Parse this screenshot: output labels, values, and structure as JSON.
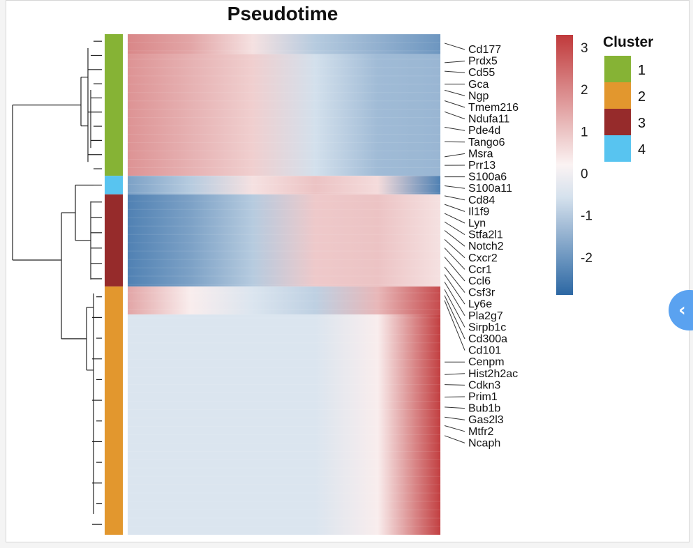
{
  "chart_data": {
    "type": "heatmap",
    "title": "Pseudotime",
    "color_scale": {
      "min": -2.9,
      "max": 3.3,
      "ticks": [
        3,
        2,
        1,
        0,
        -1,
        -2
      ],
      "colors": {
        "low": "#2c67a3",
        "mid": "#ffffff",
        "high": "#c0393b"
      }
    },
    "legend": {
      "title": "Cluster",
      "position": "right",
      "items": [
        {
          "label": "1",
          "color": "#86b335"
        },
        {
          "label": "2",
          "color": "#e2972e"
        },
        {
          "label": "3",
          "color": "#962b2b"
        },
        {
          "label": "4",
          "color": "#58c4f0"
        }
      ]
    },
    "row_clusters": [
      {
        "cluster": "1",
        "fraction": 0.283
      },
      {
        "cluster": "4",
        "fraction": 0.037
      },
      {
        "cluster": "3",
        "fraction": 0.184
      },
      {
        "cluster": "2",
        "fraction": 0.496
      }
    ],
    "row_patterns": [
      {
        "start": 0.0,
        "end": 0.04,
        "profile": [
          2.0,
          1.5,
          0.5,
          -1.0,
          -1.5,
          -2.0
        ]
      },
      {
        "start": 0.04,
        "end": 0.283,
        "profile": [
          1.8,
          1.3,
          0.8,
          -0.6,
          -1.3,
          -1.4
        ]
      },
      {
        "start": 0.283,
        "end": 0.32,
        "profile": [
          -1.8,
          -1.0,
          0.5,
          1.0,
          0.6,
          -2.4
        ]
      },
      {
        "start": 0.32,
        "end": 0.504,
        "profile": [
          -2.4,
          -1.8,
          -1.0,
          0.9,
          1.0,
          0.5
        ]
      },
      {
        "start": 0.504,
        "end": 0.56,
        "profile": [
          1.5,
          0.3,
          -0.5,
          -0.9,
          1.2,
          3.0
        ]
      },
      {
        "start": 0.56,
        "end": 1.0,
        "profile": [
          -0.5,
          -0.5,
          -0.5,
          -0.5,
          0.3,
          3.2
        ]
      }
    ],
    "gene_labels": [
      {
        "label": "Cd177",
        "row": 0.018
      },
      {
        "label": "Prdx5",
        "row": 0.057
      },
      {
        "label": "Cd55",
        "row": 0.074
      },
      {
        "label": "Gca",
        "row": 0.1
      },
      {
        "label": "Ngp",
        "row": 0.112
      },
      {
        "label": "Tmem216",
        "row": 0.133
      },
      {
        "label": "Ndufa11",
        "row": 0.155
      },
      {
        "label": "Pde4d",
        "row": 0.186
      },
      {
        "label": "Tango6",
        "row": 0.215
      },
      {
        "label": "Msra",
        "row": 0.245
      },
      {
        "label": "Prr13",
        "row": 0.262
      },
      {
        "label": "S100a6",
        "row": 0.285
      },
      {
        "label": "S100a11",
        "row": 0.303
      },
      {
        "label": "Cd84",
        "row": 0.323
      },
      {
        "label": "Il1f9",
        "row": 0.34
      },
      {
        "label": "Lyn",
        "row": 0.358
      },
      {
        "label": "Stfa2l1",
        "row": 0.375
      },
      {
        "label": "Notch2",
        "row": 0.392
      },
      {
        "label": "Cxcr2",
        "row": 0.41
      },
      {
        "label": "Ccr1",
        "row": 0.427
      },
      {
        "label": "Ccl6",
        "row": 0.445
      },
      {
        "label": "Csf3r",
        "row": 0.465
      },
      {
        "label": "Ly6e",
        "row": 0.48
      },
      {
        "label": "Pla2g7",
        "row": 0.495
      },
      {
        "label": "Sirpb1c",
        "row": 0.51
      },
      {
        "label": "Cd300a",
        "row": 0.522
      },
      {
        "label": "Cd101",
        "row": 0.532
      },
      {
        "label": "Cenpm",
        "row": 0.655
      },
      {
        "label": "Hist2h2ac",
        "row": 0.68
      },
      {
        "label": "Cdkn3",
        "row": 0.7
      },
      {
        "label": "Prim1",
        "row": 0.725
      },
      {
        "label": "Bub1b",
        "row": 0.745
      },
      {
        "label": "Gas2l3",
        "row": 0.765
      },
      {
        "label": "Mtfr2",
        "row": 0.782
      },
      {
        "label": "Ncaph",
        "row": 0.802
      }
    ]
  },
  "ui": {
    "side_tab_glyph": "‹"
  }
}
